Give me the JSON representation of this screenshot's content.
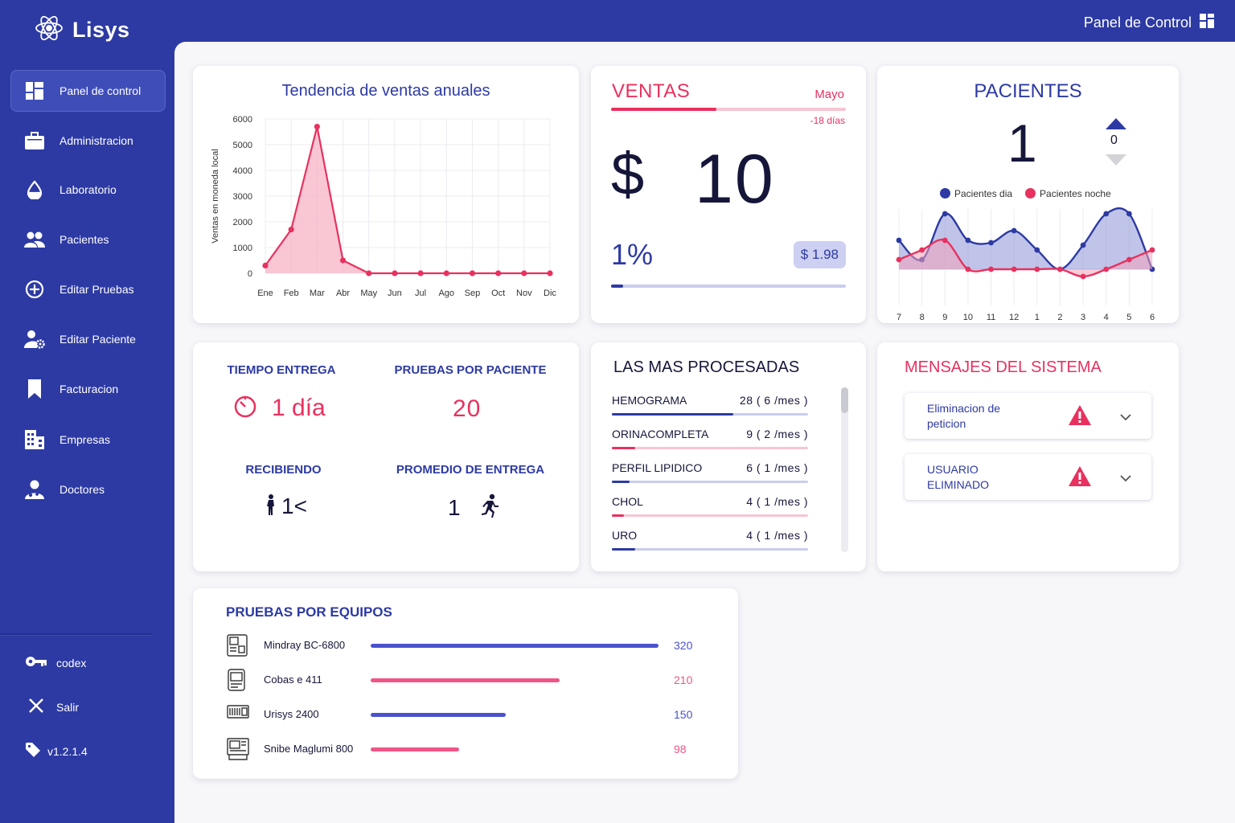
{
  "brand": {
    "name": "Lisys"
  },
  "header": {
    "title": "Panel de Control"
  },
  "sidebar": {
    "items": [
      {
        "label": "Panel de control",
        "icon": "dashboard-icon"
      },
      {
        "label": "Administracion",
        "icon": "briefcase-icon"
      },
      {
        "label": "Laboratorio",
        "icon": "drop-icon"
      },
      {
        "label": "Pacientes",
        "icon": "users-icon"
      },
      {
        "label": "Editar Pruebas",
        "icon": "plus-circle-icon"
      },
      {
        "label": "Editar Paciente",
        "icon": "user-gear-icon"
      },
      {
        "label": "Facturacion",
        "icon": "bookmark-icon"
      },
      {
        "label": "Empresas",
        "icon": "building-icon"
      },
      {
        "label": "Doctores",
        "icon": "doctor-icon"
      }
    ],
    "footer": {
      "user": "codex",
      "logout": "Salir",
      "version": "v1.2.1.4"
    }
  },
  "sales_chart": {
    "title": "Tendencia de ventas anuales",
    "ylabel": "Ventas en moneda local"
  },
  "chart_data": [
    {
      "type": "area",
      "title": "Tendencia de ventas anuales",
      "xlabel": "",
      "ylabel": "Ventas en moneda local",
      "categories": [
        "Ene",
        "Feb",
        "Mar",
        "Abr",
        "May",
        "Jun",
        "Jul",
        "Ago",
        "Sep",
        "Oct",
        "Nov",
        "Dic"
      ],
      "values": [
        300,
        1700,
        5700,
        500,
        0,
        0,
        0,
        0,
        0,
        0,
        0,
        0
      ],
      "ylim": [
        0,
        6000
      ],
      "yticks": [
        "6000",
        "5000",
        "4000",
        "3000",
        "2000",
        "1000",
        "0"
      ],
      "grid": true,
      "color": "#e8315f"
    },
    {
      "type": "area",
      "title": "",
      "categories": [
        "7",
        "8",
        "9",
        "10",
        "11",
        "12",
        "1",
        "2",
        "3",
        "4",
        "5",
        "6"
      ],
      "series": [
        {
          "name": "Pacientes dia",
          "color": "#2d3aa3",
          "values": [
            1.2,
            0.4,
            2.3,
            1.2,
            1.1,
            1.6,
            0.8,
            0,
            1.0,
            2.3,
            2.3,
            0
          ]
        },
        {
          "name": "Pacientes noche",
          "color": "#e8315f",
          "values": [
            0.4,
            0.8,
            1.2,
            0,
            0,
            0,
            0,
            0,
            -0.3,
            0,
            0.4,
            0.8
          ]
        }
      ],
      "legend": "top",
      "grid": true
    }
  ],
  "ventas": {
    "title": "VENTAS",
    "month": "Mayo",
    "days": "-18 días",
    "currency": "$",
    "value": "10",
    "percent": "1%",
    "pill": "$ 1.98",
    "progress_top": 0.45,
    "progress_bottom": 0.05
  },
  "pacientes": {
    "title": "PACIENTES",
    "count": "1",
    "delta": "0"
  },
  "stats": {
    "tiempo_entrega": {
      "label": "TIEMPO ENTREGA",
      "value": "1 día"
    },
    "pruebas_por_paciente": {
      "label": "PRUEBAS POR PACIENTE",
      "value": "20"
    },
    "recibiendo": {
      "label": "RECIBIENDO",
      "value": "1<"
    },
    "promedio_entrega": {
      "label": "PROMEDIO DE ENTREGA",
      "value": "1"
    }
  },
  "procesadas": {
    "title": "LAS MAS PROCESADAS",
    "rows": [
      {
        "name": "HEMOGRAMA",
        "count": "28 ( 6 /mes )",
        "fill": 0.62,
        "color": "#2d3aa3",
        "track": "#c9cdef"
      },
      {
        "name": "ORINACOMPLETA",
        "count": "9 ( 2 /mes )",
        "fill": 0.12,
        "color": "#e8315f",
        "track": "#f6c6d2"
      },
      {
        "name": "PERFIL LIPIDICO",
        "count": "6 ( 1 /mes )",
        "fill": 0.09,
        "color": "#2d3aa3",
        "track": "#c9cdef"
      },
      {
        "name": "CHOL",
        "count": "4 ( 1 /mes )",
        "fill": 0.06,
        "color": "#e8315f",
        "track": "#f6c6d2"
      },
      {
        "name": "URO",
        "count": "4 ( 1 /mes )",
        "fill": 0.12,
        "color": "#2d3aa3",
        "track": "#c9cdef"
      }
    ]
  },
  "mensajes": {
    "title": "MENSAJES DEL SISTEMA",
    "items": [
      {
        "text": "Eliminacion de peticion"
      },
      {
        "text": "USUARIO ELIMINADO"
      }
    ]
  },
  "equipos": {
    "title": "PRUEBAS POR EQUIPOS",
    "max": 320,
    "rows": [
      {
        "name": "Mindray BC-6800",
        "value": 320,
        "color": "#4a52cc"
      },
      {
        "name": "Cobas e 411",
        "value": 210,
        "color": "#ef5587"
      },
      {
        "name": "Urisys 2400",
        "value": 150,
        "color": "#4a52cc"
      },
      {
        "name": "Snibe Maglumi 800",
        "value": 98,
        "color": "#ef5587"
      }
    ]
  }
}
